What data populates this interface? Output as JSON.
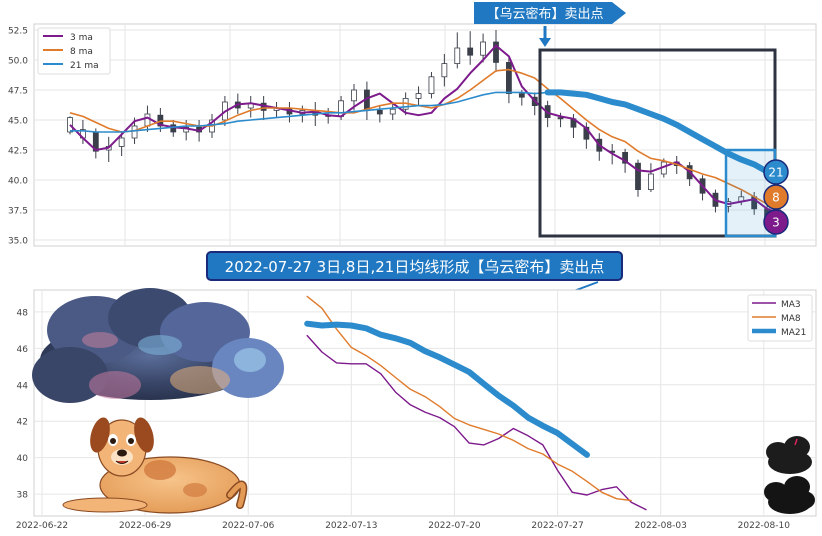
{
  "annotations": {
    "top_banner": "【乌云密布】卖出点",
    "mid_banner": "2022-07-27 3日,8日,21日均线形成【乌云密布】卖出点",
    "badge_21": "21",
    "badge_8": "8",
    "badge_3": "3"
  },
  "colors": {
    "ma3": "#7d1a8c",
    "ma8": "#e07b2b",
    "ma21": "#2b8bcc",
    "banner_bg": "#1f78c1",
    "banner_border": "#1a2a7a",
    "up_candle": "#ffffff",
    "down_candle": "#3a3f4a",
    "highlight_box": "#2d3340",
    "cloud_box": "#2b8bcc"
  },
  "chart_data": [
    {
      "type": "candlestick",
      "title": "",
      "xlabel": "",
      "ylabel": "",
      "ylim": [
        34.5,
        53
      ],
      "yticks": [
        "35.0",
        "37.5",
        "40.0",
        "42.5",
        "45.0",
        "47.5",
        "50.0",
        "52.5"
      ],
      "grid": true,
      "legend": "top-left",
      "series": [
        {
          "name": "3 ma",
          "values": [
            44.6,
            43.5,
            42.5,
            42.7,
            43.8,
            44.9,
            45.2,
            44.6,
            44.4,
            44.3,
            44.1,
            44.8,
            45.7,
            46.3,
            46.4,
            46.2,
            46.0,
            45.8,
            45.6,
            45.7,
            45.4,
            45.3,
            46.1,
            46.8,
            47.2,
            46.4,
            45.6,
            45.4,
            45.6,
            46.8,
            47.6,
            48.9,
            50.0,
            51.2,
            50.3,
            47.8,
            46.6,
            45.6,
            45.3,
            45.1,
            44.3,
            42.9,
            42.2,
            41.6,
            40.8,
            40.7,
            41.1,
            41.5,
            40.7,
            39.5,
            38.3,
            38.0,
            38.2,
            38.4,
            37.6,
            37.2
          ]
        },
        {
          "name": "8 ma",
          "values": [
            45.6,
            45.3,
            44.8,
            44.3,
            44.0,
            44.1,
            44.5,
            44.9,
            44.9,
            44.7,
            44.5,
            44.5,
            44.9,
            45.4,
            45.8,
            46.0,
            46.0,
            46.0,
            45.9,
            45.8,
            45.7,
            45.6,
            45.6,
            45.9,
            46.2,
            46.4,
            46.4,
            46.2,
            46.0,
            46.3,
            46.8,
            47.5,
            48.3,
            49.1,
            49.2,
            48.9,
            48.5,
            47.6,
            46.8,
            45.9,
            45.0,
            44.2,
            43.6,
            43.2,
            42.4,
            41.8,
            41.6,
            41.3,
            40.9,
            40.5,
            40.2,
            39.7,
            39.2,
            38.6,
            38.0,
            37.6
          ]
        },
        {
          "name": "21 ma",
          "values": [
            44.1,
            44.1,
            44.0,
            44.0,
            44.0,
            44.1,
            44.2,
            44.3,
            44.4,
            44.5,
            44.5,
            44.6,
            44.7,
            44.9,
            45.0,
            45.1,
            45.2,
            45.3,
            45.4,
            45.5,
            45.6,
            45.6,
            45.7,
            45.8,
            45.9,
            46.0,
            46.1,
            46.2,
            46.2,
            46.3,
            46.5,
            46.8,
            47.1,
            47.3,
            47.3,
            47.3,
            47.2,
            47.3,
            47.3,
            47.2,
            47.1,
            46.8,
            46.5,
            46.3,
            45.9,
            45.5,
            45.1,
            44.6,
            44.0,
            43.4,
            42.8,
            42.2,
            41.7,
            41.3,
            40.7,
            40.1
          ]
        }
      ],
      "candles": [
        [
          44.0,
          45.2,
          45.3,
          43.8
        ],
        [
          43.5,
          44.2,
          45.0,
          43.0
        ],
        [
          44.0,
          42.4,
          44.3,
          41.8
        ],
        [
          42.5,
          42.8,
          43.6,
          41.5
        ],
        [
          42.8,
          43.5,
          44.0,
          42.0
        ],
        [
          43.5,
          44.5,
          45.2,
          43.0
        ],
        [
          44.5,
          45.5,
          46.2,
          44.0
        ],
        [
          45.4,
          44.5,
          46.0,
          44.0
        ],
        [
          44.6,
          44.0,
          45.0,
          43.6
        ],
        [
          44.0,
          44.4,
          45.0,
          43.3
        ],
        [
          44.4,
          44.0,
          45.0,
          43.2
        ],
        [
          44.0,
          45.0,
          45.5,
          43.5
        ],
        [
          45.0,
          46.5,
          47.0,
          44.5
        ],
        [
          46.5,
          46.0,
          47.2,
          45.5
        ],
        [
          46.0,
          46.4,
          47.0,
          45.2
        ],
        [
          46.4,
          45.8,
          47.0,
          45.0
        ],
        [
          45.8,
          46.0,
          46.5,
          45.2
        ],
        [
          46.0,
          45.5,
          46.5,
          44.8
        ],
        [
          45.5,
          45.8,
          46.2,
          44.8
        ],
        [
          45.8,
          45.4,
          46.5,
          44.5
        ],
        [
          45.4,
          45.3,
          46.0,
          44.7
        ],
        [
          45.3,
          46.6,
          47.0,
          45.0
        ],
        [
          46.6,
          47.5,
          48.0,
          45.8
        ],
        [
          47.5,
          45.8,
          48.2,
          45.0
        ],
        [
          45.8,
          45.5,
          46.2,
          44.8
        ],
        [
          45.5,
          45.9,
          46.5,
          45.0
        ],
        [
          45.9,
          46.8,
          47.3,
          45.4
        ],
        [
          46.8,
          47.2,
          47.8,
          46.2
        ],
        [
          47.2,
          48.6,
          49.0,
          46.8
        ],
        [
          48.6,
          49.7,
          50.5,
          47.8
        ],
        [
          49.7,
          51.0,
          52.3,
          49.3
        ],
        [
          51.0,
          50.4,
          52.4,
          49.6
        ],
        [
          50.4,
          51.5,
          52.2,
          49.8
        ],
        [
          51.5,
          49.8,
          52.5,
          49.0
        ],
        [
          49.8,
          47.2,
          50.2,
          46.4
        ],
        [
          47.2,
          46.9,
          47.5,
          46.2
        ],
        [
          46.9,
          46.2,
          47.3,
          45.4
        ],
        [
          46.2,
          45.2,
          46.6,
          44.4
        ],
        [
          45.2,
          45.1,
          45.6,
          44.4
        ],
        [
          45.1,
          44.4,
          45.5,
          43.5
        ],
        [
          44.4,
          43.4,
          44.8,
          42.6
        ],
        [
          43.4,
          42.4,
          43.9,
          41.6
        ],
        [
          42.4,
          42.3,
          43.0,
          41.3
        ],
        [
          42.3,
          41.4,
          42.6,
          40.6
        ],
        [
          41.4,
          39.2,
          41.7,
          38.6
        ],
        [
          39.2,
          40.5,
          41.4,
          39.0
        ],
        [
          40.5,
          41.5,
          41.8,
          40.2
        ],
        [
          41.5,
          41.2,
          42.0,
          40.5
        ],
        [
          41.2,
          40.1,
          41.5,
          39.5
        ],
        [
          40.1,
          38.9,
          40.4,
          38.3
        ],
        [
          38.9,
          37.8,
          39.2,
          37.3
        ],
        [
          37.8,
          38.2,
          38.5,
          37.3
        ],
        [
          38.2,
          38.6,
          39.1,
          37.9
        ],
        [
          38.6,
          37.6,
          39.0,
          37.1
        ],
        [
          37.6,
          36.4,
          38.0,
          35.9
        ],
        [
          36.4,
          37.2,
          37.6,
          35.8
        ]
      ]
    },
    {
      "type": "line",
      "title": "",
      "xlabel": "",
      "ylabel": "",
      "ylim": [
        36.8,
        49.2
      ],
      "yticks": [
        "38",
        "40",
        "42",
        "44",
        "46",
        "48"
      ],
      "xticks": [
        "2022-06-22",
        "2022-06-29",
        "2022-07-06",
        "2022-07-13",
        "2022-07-20",
        "2022-07-27",
        "2022-08-03",
        "2022-08-10"
      ],
      "x_range": [
        "2022-06-22",
        "2022-08-13"
      ],
      "grid": true,
      "legend": "top-right",
      "series": [
        {
          "name": "MA3",
          "points": [
            [
              "2022-07-10",
              46.7
            ],
            [
              "2022-07-11",
              45.8
            ],
            [
              "2022-07-12",
              45.2
            ],
            [
              "2022-07-13",
              45.15
            ],
            [
              "2022-07-14",
              45.15
            ],
            [
              "2022-07-15",
              44.6
            ],
            [
              "2022-07-16",
              43.6
            ],
            [
              "2022-07-17",
              42.9
            ],
            [
              "2022-07-18",
              42.5
            ],
            [
              "2022-07-19",
              42.2
            ],
            [
              "2022-07-20",
              41.7
            ],
            [
              "2022-07-21",
              40.8
            ],
            [
              "2022-07-22",
              40.7
            ],
            [
              "2022-07-23",
              41.05
            ],
            [
              "2022-07-24",
              41.6
            ],
            [
              "2022-07-25",
              41.2
            ],
            [
              "2022-07-26",
              40.7
            ],
            [
              "2022-07-27",
              39.3
            ],
            [
              "2022-07-28",
              38.1
            ],
            [
              "2022-07-29",
              37.95
            ],
            [
              "2022-07-30",
              38.25
            ],
            [
              "2022-07-31",
              38.4
            ],
            [
              "2022-08-01",
              37.55
            ],
            [
              "2022-08-02",
              37.15
            ]
          ]
        },
        {
          "name": "MA8",
          "points": [
            [
              "2022-07-10",
              48.85
            ],
            [
              "2022-07-11",
              48.2
            ],
            [
              "2022-07-12",
              47.05
            ],
            [
              "2022-07-13",
              46.05
            ],
            [
              "2022-07-14",
              45.6
            ],
            [
              "2022-07-15",
              45.05
            ],
            [
              "2022-07-16",
              44.4
            ],
            [
              "2022-07-17",
              43.75
            ],
            [
              "2022-07-18",
              43.35
            ],
            [
              "2022-07-19",
              42.8
            ],
            [
              "2022-07-20",
              42.15
            ],
            [
              "2022-07-21",
              41.8
            ],
            [
              "2022-07-22",
              41.55
            ],
            [
              "2022-07-23",
              41.3
            ],
            [
              "2022-07-24",
              40.95
            ],
            [
              "2022-07-25",
              40.5
            ],
            [
              "2022-07-26",
              40.2
            ],
            [
              "2022-07-27",
              39.65
            ],
            [
              "2022-07-28",
              39.25
            ],
            [
              "2022-07-29",
              38.7
            ],
            [
              "2022-07-30",
              38.1
            ],
            [
              "2022-07-31",
              37.75
            ],
            [
              "2022-08-01",
              37.65
            ]
          ]
        },
        {
          "name": "MA21",
          "points": [
            [
              "2022-07-10",
              47.35
            ],
            [
              "2022-07-11",
              47.25
            ],
            [
              "2022-07-12",
              47.3
            ],
            [
              "2022-07-13",
              47.25
            ],
            [
              "2022-07-14",
              47.1
            ],
            [
              "2022-07-15",
              46.75
            ],
            [
              "2022-07-16",
              46.55
            ],
            [
              "2022-07-17",
              46.3
            ],
            [
              "2022-07-18",
              45.85
            ],
            [
              "2022-07-19",
              45.5
            ],
            [
              "2022-07-20",
              45.1
            ],
            [
              "2022-07-21",
              44.7
            ],
            [
              "2022-07-22",
              44.05
            ],
            [
              "2022-07-23",
              43.4
            ],
            [
              "2022-07-24",
              42.85
            ],
            [
              "2022-07-25",
              42.2
            ],
            [
              "2022-07-26",
              41.75
            ],
            [
              "2022-07-27",
              41.35
            ],
            [
              "2022-07-28",
              40.75
            ],
            [
              "2022-07-29",
              40.15
            ]
          ]
        }
      ]
    }
  ]
}
